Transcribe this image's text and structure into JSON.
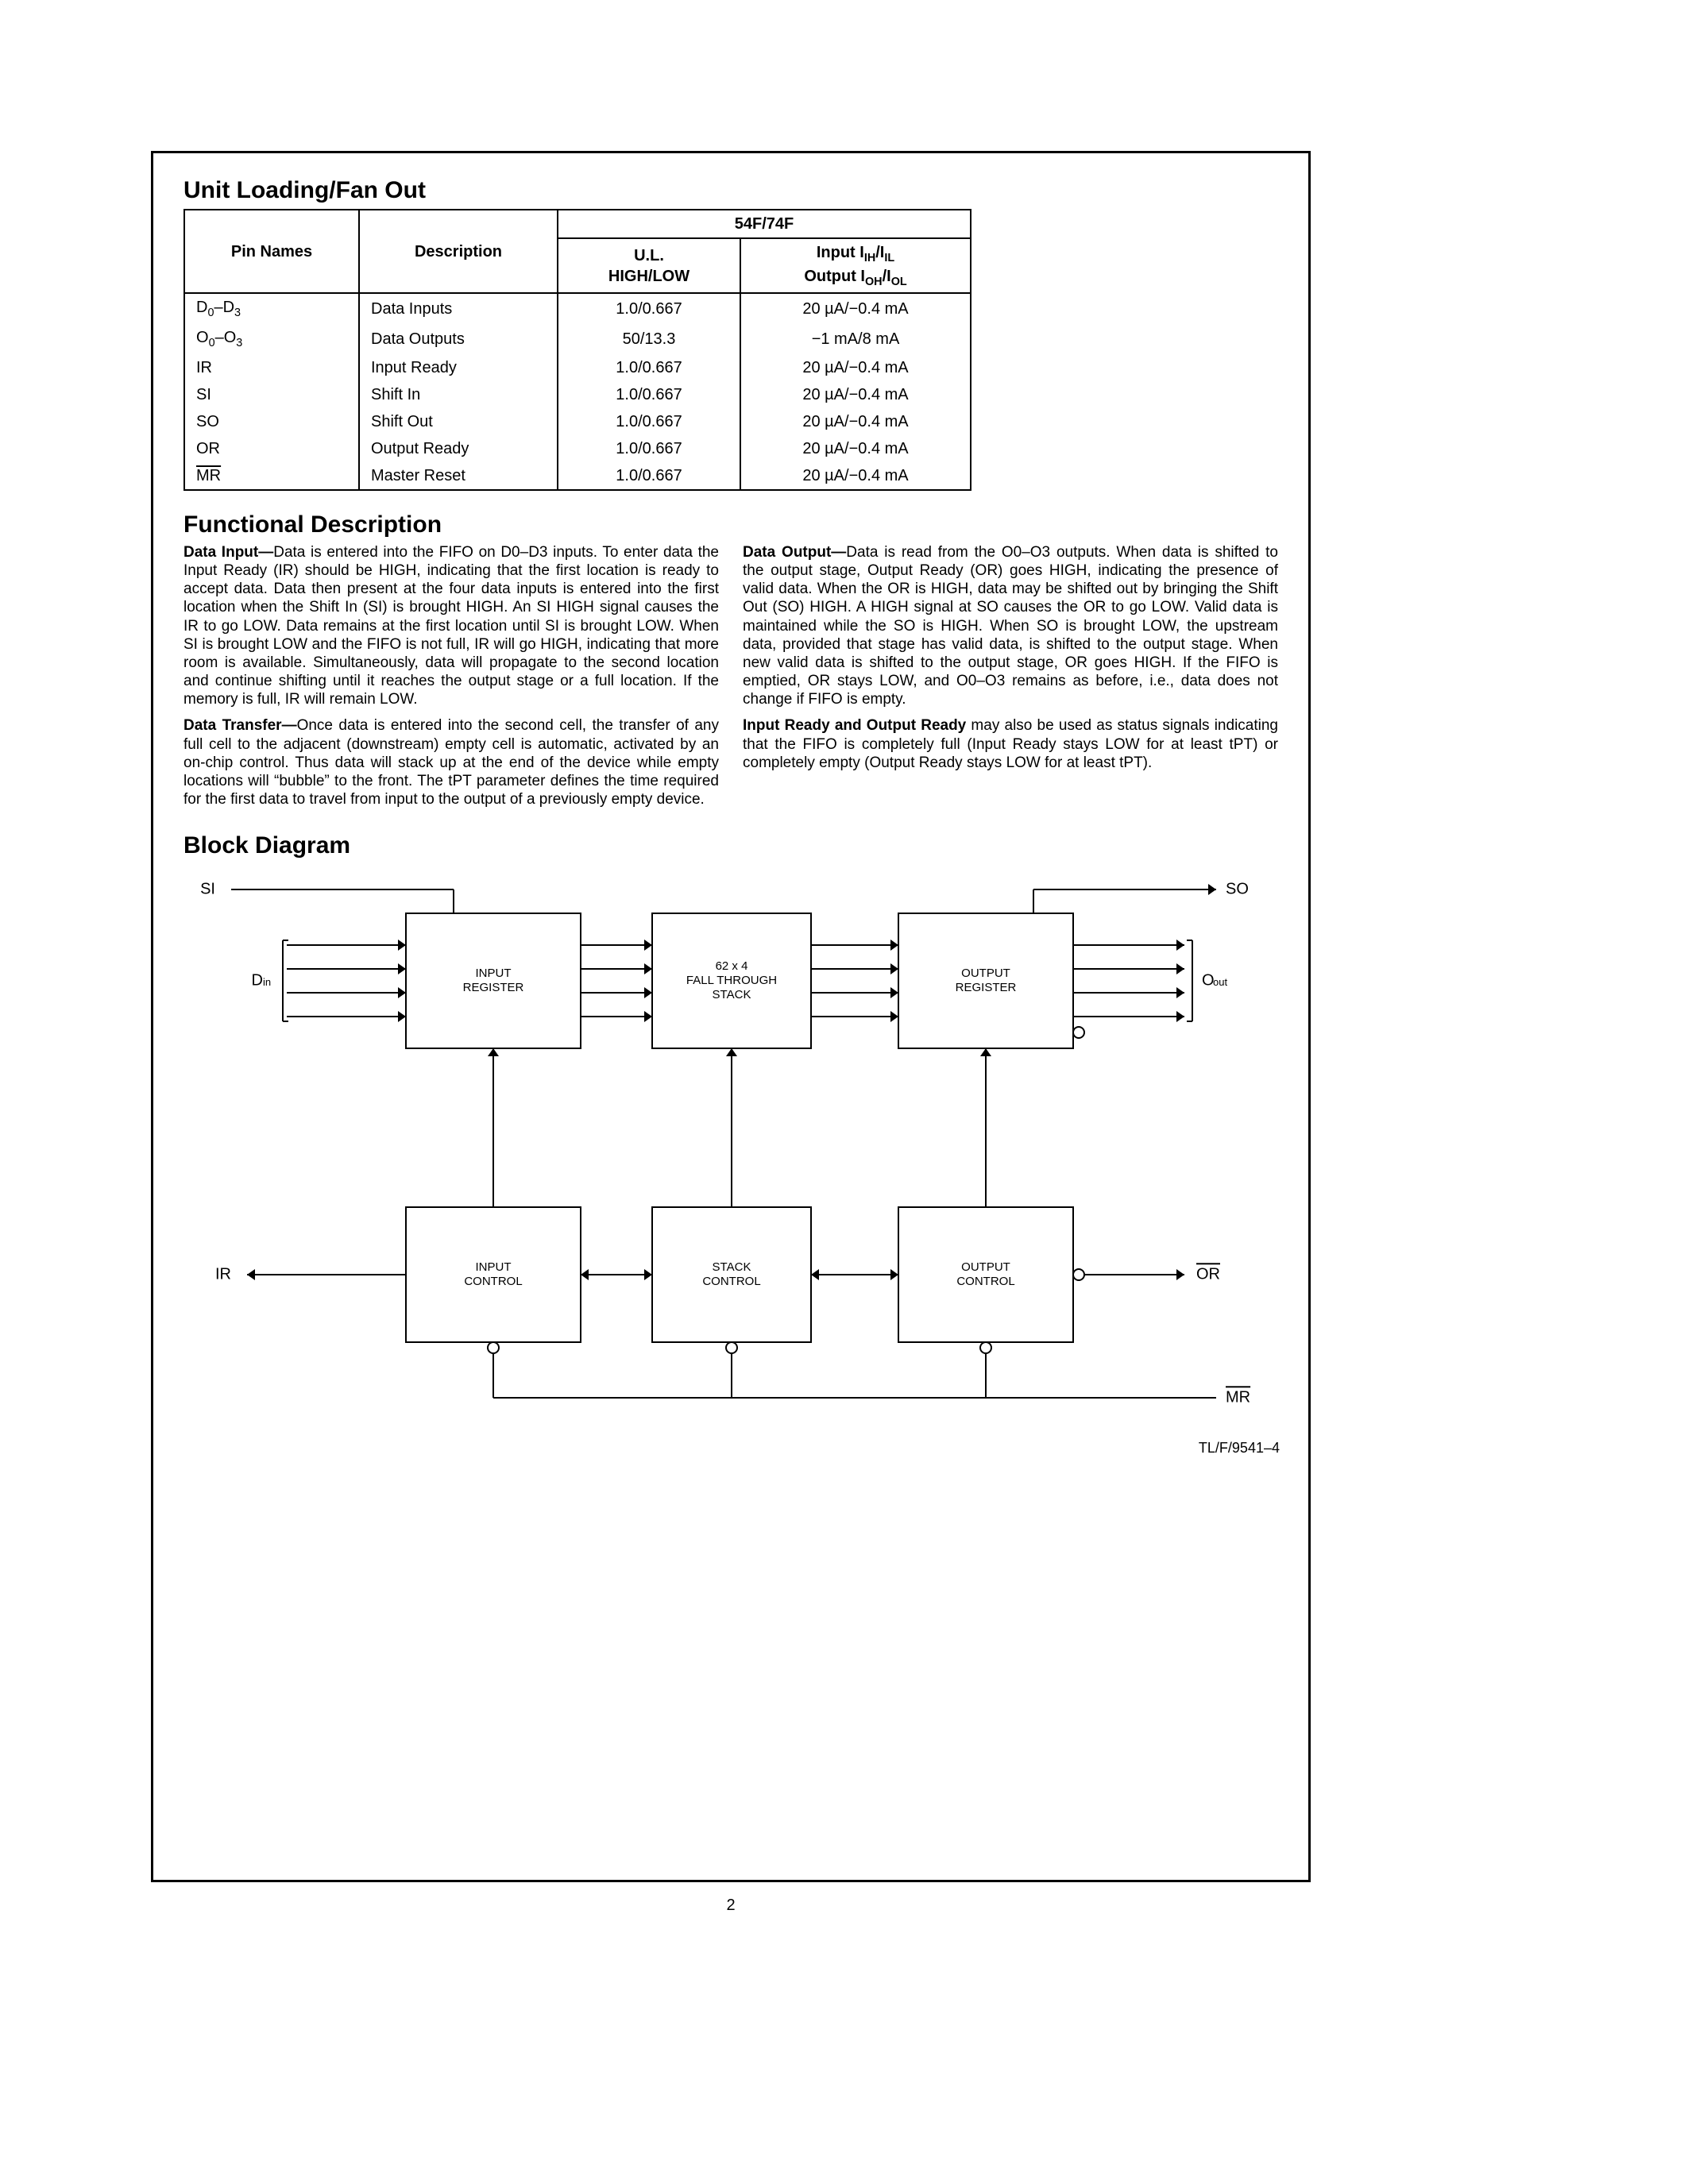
{
  "page_number": "2",
  "sections": {
    "unit_loading_title": "Unit Loading/Fan Out",
    "functional_title": "Functional Description",
    "block_title": "Block Diagram"
  },
  "table": {
    "header": {
      "pin_names": "Pin Names",
      "description": "Description",
      "group": "54F/74F",
      "ul": "U.L.",
      "ul2": "HIGH/LOW",
      "io_a": "Input I",
      "io_a_sub1": "IH",
      "io_a_mid": "/I",
      "io_a_sub2": "IL",
      "io_b": "Output I",
      "io_b_sub1": "OH",
      "io_b_mid": "/I",
      "io_b_sub2": "OL"
    },
    "rows": [
      {
        "pin": "D0–D3",
        "pin_base": "D",
        "pin_sub1": "0",
        "pin_dash": "–D",
        "pin_sub2": "3",
        "desc": "Data Inputs",
        "ul": "1.0/0.667",
        "io": "20 µA/−0.4 mA"
      },
      {
        "pin": "O0–O3",
        "pin_base": "O",
        "pin_sub1": "0",
        "pin_dash": "–O",
        "pin_sub2": "3",
        "desc": "Data Outputs",
        "ul": "50/13.3",
        "io": "−1 mA/8 mA"
      },
      {
        "pin": "IR",
        "desc": "Input Ready",
        "ul": "1.0/0.667",
        "io": "20 µA/−0.4 mA"
      },
      {
        "pin": "SI",
        "desc": "Shift In",
        "ul": "1.0/0.667",
        "io": "20 µA/−0.4 mA"
      },
      {
        "pin": "SO",
        "desc": "Shift Out",
        "ul": "1.0/0.667",
        "io": "20 µA/−0.4 mA"
      },
      {
        "pin": "OR",
        "desc": "Output Ready",
        "ul": "1.0/0.667",
        "io": "20 µA/−0.4 mA"
      },
      {
        "pin": "MR",
        "overline": true,
        "desc": "Master Reset",
        "ul": "1.0/0.667",
        "io": "20 µA/−0.4 mA"
      }
    ]
  },
  "body": {
    "left": [
      {
        "runin": "Data Input—",
        "text": "Data is entered into the FIFO on D0–D3 inputs. To enter data the Input Ready (IR) should be HIGH, indicating that the first location is ready to accept data. Data then present at the four data inputs is entered into the first location when the Shift In (SI) is brought HIGH. An SI HIGH signal causes the IR to go LOW. Data remains at the first location until SI is brought LOW. When SI is brought LOW and the FIFO is not full, IR will go HIGH, indicating that more room is available. Simultaneously, data will propagate to the second location and continue shifting until it reaches the output stage or a full location. If the memory is full, IR will remain LOW."
      },
      {
        "runin": "Data Transfer—",
        "text": "Once data is entered into the second cell, the transfer of any full cell to the adjacent (downstream) empty cell is automatic, activated by an on-chip control. Thus data will stack up at the end of the device while empty locations will “bubble” to the front. The tPT parameter defines the time required for the first data to travel from input to the output of a previously empty device."
      }
    ],
    "right": [
      {
        "runin": "Data Output—",
        "text": "Data is read from the O0–O3 outputs. When data is shifted to the output stage, Output Ready (OR) goes HIGH, indicating the presence of valid data. When the OR is HIGH, data may be shifted out by bringing the Shift Out (SO) HIGH. A HIGH signal at SO causes the OR to go LOW. Valid data is maintained while the SO is HIGH. When SO is brought LOW, the upstream data, provided that stage has valid data, is shifted to the output stage. When new valid data is shifted to the output stage, OR goes HIGH. If the FIFO is emptied, OR stays LOW, and O0–O3 remains as before, i.e., data does not change if FIFO is empty."
      },
      {
        "runin": "Input Ready and Output Ready",
        "text": " may also be used as status signals indicating that the FIFO is completely full (Input Ready stays LOW for at least tPT) or completely empty (Output Ready stays LOW for at least tPT)."
      }
    ]
  },
  "diagram": {
    "caption": "TL/F/9541–4",
    "blocks": {
      "input_reg": "INPUT\nREGISTER",
      "stack": "62 x 4\nFALL THROUGH\nSTACK",
      "output_reg": "OUTPUT\nREGISTER",
      "input_ctrl": "INPUT\nCONTROL",
      "stack_ctrl": "STACK\nCONTROL",
      "output_ctrl": "OUTPUT\nCONTROL"
    },
    "labels": {
      "si": "SI",
      "so": "SO",
      "din": "D",
      "din_sub": "in",
      "oout": "O",
      "oout_sub": "out",
      "ir": "IR",
      "or": "OR",
      "mr": "MR"
    },
    "style": {
      "stroke": "#000000",
      "stroke_width": 2,
      "block_fill": "#ffffff",
      "font_size_block": 15,
      "font_size_label": 20
    }
  }
}
